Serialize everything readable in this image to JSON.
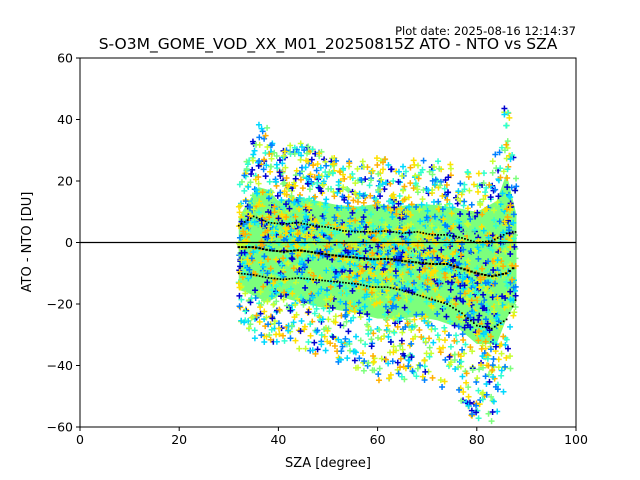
{
  "plot_date": "Plot date: 2025-08-16 12:14:37",
  "chart_data": {
    "type": "scatter",
    "title": "S-O3M_GOME_VOD_XX_M01_20250815Z ATO - NTO vs SZA",
    "xlabel": "SZA [degree]",
    "ylabel": "ATO - NTO [DU]",
    "xlim": [
      0,
      100
    ],
    "ylim": [
      -60,
      60
    ],
    "xticks": [
      0,
      20,
      40,
      60,
      80,
      100
    ],
    "yticks": [
      -60,
      -40,
      -20,
      0,
      20,
      40,
      60
    ],
    "grid": false,
    "reference_line_y": 0,
    "marker": "+",
    "colormap": [
      "#0000d0",
      "#0080ff",
      "#00d8ff",
      "#30ffd0",
      "#7cff7c",
      "#c8ff30",
      "#ffe000",
      "#ffb000"
    ],
    "scatter_envelope": {
      "sza": [
        32,
        34,
        36,
        38,
        40,
        44,
        48,
        52,
        56,
        60,
        64,
        68,
        72,
        76,
        80,
        84,
        86,
        88
      ],
      "upper": [
        18,
        30,
        40,
        38,
        30,
        33,
        30,
        27,
        26,
        28,
        26,
        28,
        27,
        25,
        22,
        30,
        50,
        20
      ],
      "lower": [
        -28,
        -30,
        -33,
        -35,
        -32,
        -35,
        -38,
        -40,
        -42,
        -45,
        -45,
        -44,
        -46,
        -50,
        -60,
        -60,
        -45,
        -35
      ]
    },
    "mean_series": {
      "sza": [
        32,
        35,
        38,
        41,
        44,
        47,
        50,
        53,
        56,
        59,
        62,
        65,
        68,
        71,
        74,
        77,
        80,
        83,
        86,
        88
      ],
      "values": [
        -1.5,
        -1.5,
        -2.5,
        -3.0,
        -2.5,
        -3.2,
        -4.0,
        -4.5,
        -5.0,
        -5.5,
        -5.3,
        -6.0,
        -6.5,
        -7.0,
        -7.0,
        -8.5,
        -10.0,
        -11.0,
        -10.0,
        -7.5
      ]
    },
    "std_upper_series": {
      "sza": [
        32,
        35,
        38,
        41,
        44,
        47,
        50,
        53,
        56,
        59,
        62,
        65,
        68,
        71,
        74,
        77,
        80,
        83,
        86,
        88
      ],
      "values": [
        5.5,
        8.5,
        6.5,
        6.0,
        6.5,
        5.5,
        5.0,
        3.8,
        3.5,
        3.5,
        3.8,
        3.0,
        3.5,
        2.5,
        2.5,
        1.5,
        0.0,
        0.5,
        3.0,
        3.5
      ]
    },
    "std_lower_series": {
      "sza": [
        32,
        35,
        38,
        41,
        44,
        47,
        50,
        53,
        56,
        59,
        62,
        65,
        68,
        71,
        74,
        77,
        80,
        83,
        86,
        88
      ],
      "values": [
        -10.0,
        -10.5,
        -11.5,
        -12.0,
        -11.5,
        -12.0,
        -12.5,
        -13.0,
        -13.5,
        -14.5,
        -14.5,
        -15.5,
        -17.0,
        -18.5,
        -20.0,
        -23.0,
        -27.0,
        -28.0,
        -25.0,
        -18.0
      ]
    }
  }
}
